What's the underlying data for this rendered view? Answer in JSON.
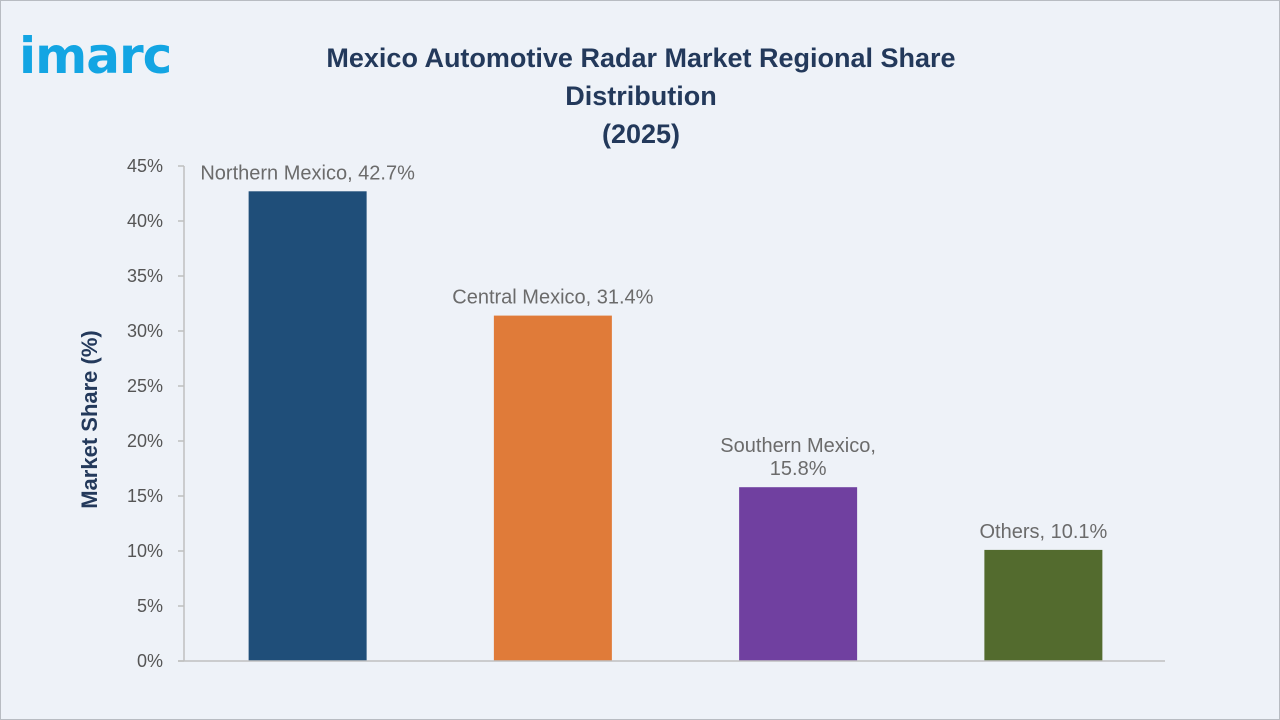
{
  "brand": {
    "logo_text": "imarc",
    "logo_color": "#13a5e3"
  },
  "chart_data": {
    "type": "bar",
    "title": "Mexico Automotive Radar Market Regional Share Distribution",
    "subtitle": "(2025)",
    "xlabel": "",
    "ylabel": "Market Share (%)",
    "ylim": [
      0,
      45
    ],
    "ytick_step": 5,
    "y_tick_format": "percent",
    "grid": false,
    "categories": [
      "Northern Mexico",
      "Central Mexico",
      "Southern Mexico",
      "Others"
    ],
    "values": [
      42.7,
      31.4,
      15.8,
      10.1
    ],
    "data_labels": [
      [
        "Northern Mexico, 42.7%"
      ],
      [
        "Central Mexico, 31.4%"
      ],
      [
        "Southern Mexico,",
        "15.8%"
      ],
      [
        "Others, 10.1%"
      ]
    ],
    "colors": [
      "#1f4e79",
      "#e07b39",
      "#7040a0",
      "#536b2e"
    ],
    "axis_color": "#bfbfbf",
    "title_color": "#23395b"
  }
}
